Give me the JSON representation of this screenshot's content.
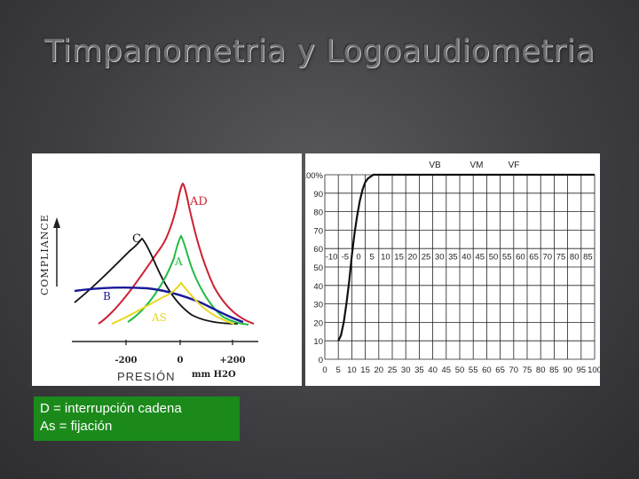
{
  "slide": {
    "title": "Timpanometria y Logoaudiometria"
  },
  "tympanogram": {
    "y_label": "COMPLIANCE",
    "x_label": "PRESIÓN",
    "unit_label": "mm H2O",
    "x_ticks": [
      "-200",
      "0",
      "+200"
    ],
    "curve_labels": {
      "AD": "AD",
      "C": "C",
      "A": "A",
      "B": "B",
      "AS": "AS"
    },
    "colors": {
      "AD": "#cc2233",
      "C": "#111111",
      "A": "#22bb44",
      "B": "#1a1a99",
      "AS": "#e8d820"
    }
  },
  "speech_audiogram": {
    "top_labels": [
      "VB",
      "VM",
      "VF"
    ],
    "y_ticks": [
      "100%",
      "90",
      "80",
      "70",
      "60",
      "50",
      "40",
      "30",
      "20",
      "10",
      "0"
    ],
    "x_ticks": [
      "0",
      "5",
      "10",
      "15",
      "20",
      "25",
      "30",
      "35",
      "40",
      "45",
      "50",
      "55",
      "60",
      "65",
      "70",
      "75",
      "80",
      "85",
      "90",
      "95",
      "100"
    ],
    "inner_ticks": [
      "-10",
      "-5",
      "0",
      "5",
      "10",
      "15",
      "20",
      "25",
      "30",
      "35",
      "40",
      "45",
      "50",
      "55",
      "60",
      "65",
      "70",
      "75",
      "80",
      "85"
    ]
  },
  "legend": {
    "line1": "D = interrupción cadena",
    "line2": "As = fijación",
    "background": "#1b8a1b"
  }
}
